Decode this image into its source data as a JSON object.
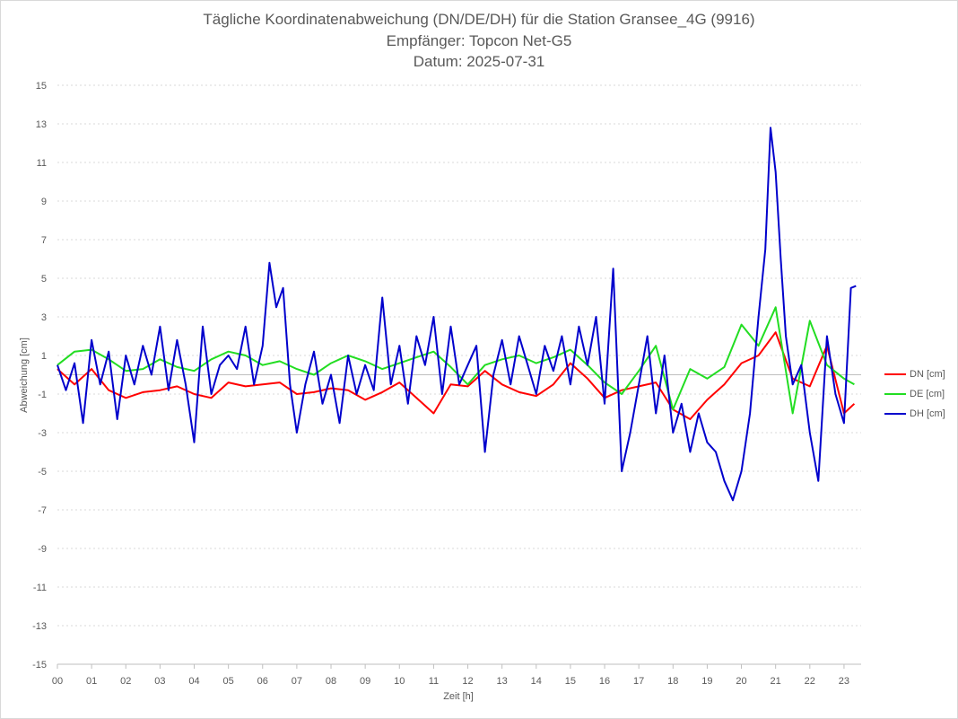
{
  "chart_data": {
    "type": "line",
    "title": "Tägliche Koordinatenabweichung (DN/DE/DH) für die Station Gransee_4G (9916)",
    "subtitle_1": "Empfänger: Topcon Net-G5",
    "subtitle_2": "Datum: 2025-07-31",
    "xlabel": "Zeit [h]",
    "ylabel": "Abweichung [cm]",
    "xlim": [
      0,
      23.5
    ],
    "ylim": [
      -15,
      15
    ],
    "yticks": [
      15,
      13,
      11,
      9,
      7,
      5,
      3,
      1,
      -1,
      -3,
      -5,
      -7,
      -9,
      -11,
      -13,
      -15
    ],
    "xticks": [
      "00",
      "01",
      "02",
      "03",
      "04",
      "05",
      "06",
      "07",
      "08",
      "09",
      "10",
      "11",
      "12",
      "13",
      "14",
      "15",
      "16",
      "17",
      "18",
      "19",
      "20",
      "21",
      "22",
      "23"
    ],
    "grid": true,
    "legend_position": "right",
    "series": [
      {
        "name": "DN [cm]",
        "color": "#ff0000",
        "x": [
          0,
          0.5,
          1,
          1.5,
          2,
          2.5,
          3,
          3.5,
          4,
          4.5,
          5,
          5.5,
          6,
          6.5,
          7,
          7.5,
          8,
          8.5,
          9,
          9.5,
          10,
          10.5,
          11,
          11.5,
          12,
          12.5,
          13,
          13.5,
          14,
          14.5,
          15,
          15.5,
          16,
          16.5,
          17,
          17.5,
          18,
          18.5,
          19,
          19.5,
          20,
          20.5,
          21,
          21.5,
          22,
          22.5,
          23,
          23.3
        ],
        "values": [
          0.3,
          -0.5,
          0.3,
          -0.8,
          -1.2,
          -0.9,
          -0.8,
          -0.6,
          -1.0,
          -1.2,
          -0.4,
          -0.6,
          -0.5,
          -0.4,
          -1.0,
          -0.9,
          -0.7,
          -0.8,
          -1.3,
          -0.9,
          -0.4,
          -1.2,
          -2.0,
          -0.5,
          -0.6,
          0.2,
          -0.5,
          -0.9,
          -1.1,
          -0.5,
          0.6,
          -0.2,
          -1.2,
          -0.8,
          -0.6,
          -0.4,
          -1.8,
          -2.3,
          -1.3,
          -0.5,
          0.6,
          1.0,
          2.2,
          -0.2,
          -0.6,
          1.5,
          -2.0,
          -1.5
        ]
      },
      {
        "name": "DE [cm]",
        "color": "#22dd22",
        "x": [
          0,
          0.5,
          1,
          1.5,
          2,
          2.5,
          3,
          3.5,
          4,
          4.5,
          5,
          5.5,
          6,
          6.5,
          7,
          7.5,
          8,
          8.5,
          9,
          9.5,
          10,
          10.5,
          11,
          11.5,
          12,
          12.5,
          13,
          13.5,
          14,
          14.5,
          15,
          15.5,
          16,
          16.5,
          17,
          17.5,
          18,
          18.5,
          19,
          19.5,
          20,
          20.5,
          21,
          21.5,
          22,
          22.5,
          23,
          23.3
        ],
        "values": [
          0.5,
          1.2,
          1.3,
          0.8,
          0.2,
          0.3,
          0.8,
          0.4,
          0.2,
          0.8,
          1.2,
          1.0,
          0.5,
          0.7,
          0.3,
          0.0,
          0.6,
          1.0,
          0.7,
          0.3,
          0.6,
          0.9,
          1.2,
          0.4,
          -0.5,
          0.5,
          0.8,
          1.0,
          0.6,
          0.9,
          1.3,
          0.5,
          -0.4,
          -1.0,
          0.2,
          1.5,
          -1.8,
          0.3,
          -0.2,
          0.4,
          2.6,
          1.5,
          3.5,
          -2.0,
          2.8,
          0.5,
          -0.2,
          -0.5
        ]
      },
      {
        "name": "DH [cm]",
        "color": "#0000cc",
        "x": [
          0,
          0.25,
          0.5,
          0.75,
          1,
          1.25,
          1.5,
          1.75,
          2,
          2.25,
          2.5,
          2.75,
          3,
          3.25,
          3.5,
          3.75,
          4,
          4.25,
          4.5,
          4.75,
          5,
          5.25,
          5.5,
          5.75,
          6,
          6.2,
          6.4,
          6.6,
          6.8,
          7,
          7.25,
          7.5,
          7.75,
          8,
          8.25,
          8.5,
          8.75,
          9,
          9.25,
          9.5,
          9.75,
          10,
          10.25,
          10.5,
          10.75,
          11,
          11.25,
          11.5,
          11.75,
          12,
          12.25,
          12.5,
          12.75,
          13,
          13.25,
          13.5,
          13.75,
          14,
          14.25,
          14.5,
          14.75,
          15,
          15.25,
          15.5,
          15.75,
          16,
          16.25,
          16.5,
          16.75,
          17,
          17.25,
          17.5,
          17.75,
          18,
          18.25,
          18.5,
          18.75,
          19,
          19.25,
          19.5,
          19.75,
          20,
          20.25,
          20.5,
          20.7,
          20.85,
          21,
          21.15,
          21.3,
          21.5,
          21.75,
          22,
          22.25,
          22.5,
          22.75,
          23,
          23.2,
          23.35
        ],
        "values": [
          0.5,
          -0.8,
          0.6,
          -2.5,
          1.8,
          -0.5,
          1.2,
          -2.3,
          1.0,
          -0.5,
          1.5,
          0.0,
          2.5,
          -0.8,
          1.8,
          -0.5,
          -3.5,
          2.5,
          -1.0,
          0.5,
          1.0,
          0.3,
          2.5,
          -0.5,
          1.5,
          5.8,
          3.5,
          4.5,
          -0.5,
          -3.0,
          -0.5,
          1.2,
          -1.5,
          0.0,
          -2.5,
          1.0,
          -1.0,
          0.5,
          -0.8,
          4.0,
          -0.5,
          1.5,
          -1.5,
          2.0,
          0.5,
          3.0,
          -1.0,
          2.5,
          -0.5,
          0.5,
          1.5,
          -4.0,
          0.0,
          1.8,
          -0.5,
          2.0,
          0.5,
          -1.0,
          1.5,
          0.2,
          2.0,
          -0.5,
          2.5,
          0.5,
          3.0,
          -1.5,
          5.5,
          -5.0,
          -3.0,
          -0.5,
          2.0,
          -2.0,
          1.0,
          -3.0,
          -1.5,
          -4.0,
          -2.0,
          -3.5,
          -4.0,
          -5.5,
          -6.5,
          -5.0,
          -2.0,
          3.0,
          6.5,
          12.8,
          10.5,
          6.0,
          2.0,
          -0.5,
          0.5,
          -3.0,
          -5.5,
          2.0,
          -1.0,
          -2.5,
          4.5,
          4.6
        ]
      }
    ]
  }
}
